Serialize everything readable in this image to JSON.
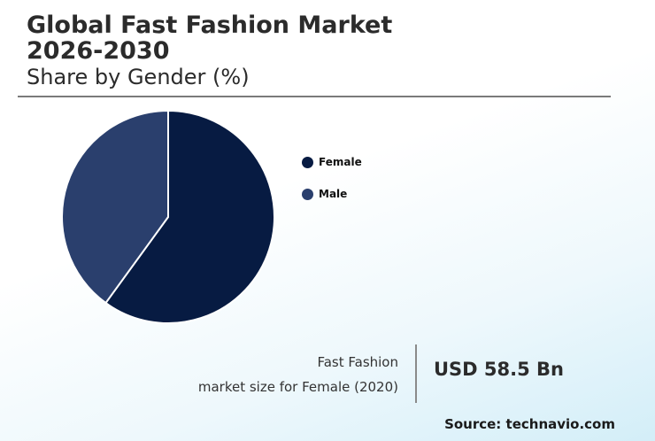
{
  "header": {
    "title_line1": "Global Fast Fashion Market",
    "title_line2": "2026-2030",
    "subtitle": "Share by Gender (%)"
  },
  "stat": {
    "label_line1": "Fast Fashion",
    "label_line2": "market size for Female (2020)",
    "value": "USD 58.5 Bn"
  },
  "source": "Source: technavio.com",
  "chart_data": {
    "type": "pie",
    "title": "Global Fast Fashion Market 2026-2030",
    "subtitle": "Share by Gender (%)",
    "categories": [
      "Female",
      "Male"
    ],
    "values": [
      60,
      40
    ],
    "colors": [
      "#071b42",
      "#2a3f6d"
    ],
    "legend": "right",
    "start": "top, clockwise"
  }
}
